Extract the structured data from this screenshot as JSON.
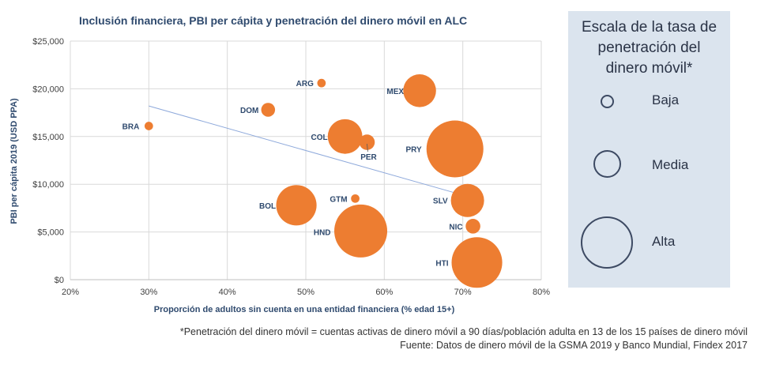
{
  "chart_data": {
    "type": "scatter",
    "subtype": "bubble",
    "title": "Inclusión financiera, PBI per cápita y penetración del dinero móvil en ALC",
    "xlabel": "Proporción de adultos sin cuenta en una entidad financiera (% edad 15+)",
    "ylabel": "PBI per cápita 2019 (USD PPA)",
    "xlim": [
      0.2,
      0.8
    ],
    "ylim": [
      0,
      25000
    ],
    "x_ticks": [
      0.2,
      0.3,
      0.4,
      0.5,
      0.6,
      0.7,
      0.8
    ],
    "x_tick_labels": [
      "20%",
      "30%",
      "40%",
      "50%",
      "60%",
      "70%",
      "80%"
    ],
    "y_ticks": [
      0,
      5000,
      10000,
      15000,
      20000,
      25000
    ],
    "y_tick_labels": [
      "$0",
      "$5,000",
      "$10,000",
      "$15,000",
      "$20,000",
      "$25,000"
    ],
    "grid": true,
    "color": "#ed7d31",
    "trendline": {
      "x": [
        0.3,
        0.69
      ],
      "y": [
        18200,
        9100
      ],
      "color": "#8ea9db"
    },
    "points": [
      {
        "label": "ARG",
        "x": 0.52,
        "y": 20600,
        "size": 0.03
      },
      {
        "label": "MEX",
        "x": 0.645,
        "y": 19800,
        "size": 0.45
      },
      {
        "label": "DOM",
        "x": 0.452,
        "y": 17800,
        "size": 0.08
      },
      {
        "label": "BRA",
        "x": 0.3,
        "y": 16100,
        "size": 0.03
      },
      {
        "label": "COL",
        "x": 0.55,
        "y": 15000,
        "size": 0.5
      },
      {
        "label": "PER",
        "x": 0.578,
        "y": 14400,
        "size": 0.1
      },
      {
        "label": "PRY",
        "x": 0.69,
        "y": 13700,
        "size": 1.35
      },
      {
        "label": "SLV",
        "x": 0.706,
        "y": 8300,
        "size": 0.46
      },
      {
        "label": "GTM",
        "x": 0.563,
        "y": 8500,
        "size": 0.03
      },
      {
        "label": "BOL",
        "x": 0.488,
        "y": 7800,
        "size": 0.68
      },
      {
        "label": "HND",
        "x": 0.57,
        "y": 5100,
        "size": 1.17
      },
      {
        "label": "NIC",
        "x": 0.713,
        "y": 5600,
        "size": 0.09
      },
      {
        "label": "HTI",
        "x": 0.718,
        "y": 1800,
        "size": 1.07
      }
    ]
  },
  "legend": {
    "title": "Escala de la tasa de\npenetración del\ndinero móvil*",
    "items": [
      {
        "label": "Baja",
        "level": "low"
      },
      {
        "label": "Media",
        "level": "medium"
      },
      {
        "label": "Alta",
        "level": "high"
      }
    ],
    "border_color": "#3d4a63"
  },
  "footnotes": {
    "line1": "*Penetración del dinero móvil = cuentas activas de dinero móvil a 90 días/población adulta en 13 de los 15 países de dinero móvil",
    "line2": "Fuente: Datos de dinero móvil de la GSMA 2019 y Banco Mundial, Findex 2017"
  }
}
